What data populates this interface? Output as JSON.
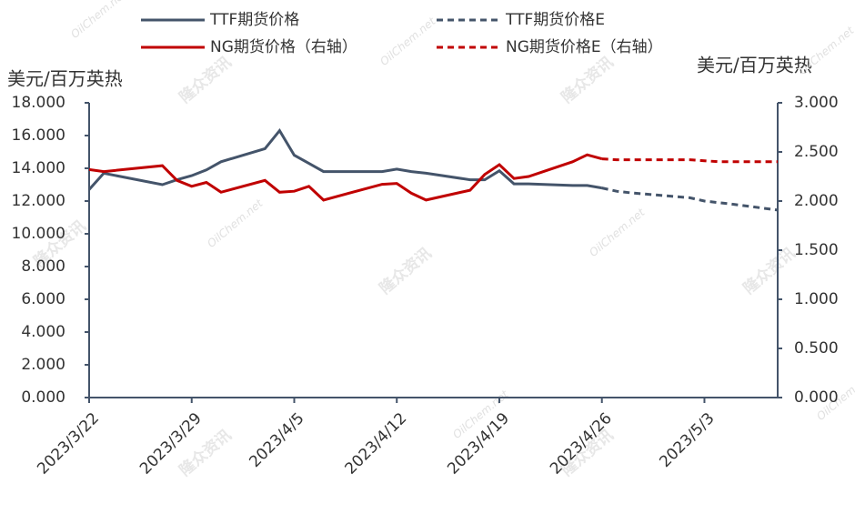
{
  "chart_data": {
    "type": "line",
    "y_label": "美元/百万英热",
    "y2_label": "美元/百万英热",
    "watermark": [
      "隆众资讯",
      "OilChem.net"
    ],
    "x": [
      "2023/3/22",
      "2023/3/23",
      "2023/3/27",
      "2023/3/28",
      "2023/3/29",
      "2023/3/30",
      "2023/3/31",
      "2023/4/3",
      "2023/4/4",
      "2023/4/5",
      "2023/4/6",
      "2023/4/7",
      "2023/4/11",
      "2023/4/12",
      "2023/4/13",
      "2023/4/14",
      "2023/4/17",
      "2023/4/18",
      "2023/4/19",
      "2023/4/20",
      "2023/4/21",
      "2023/4/24",
      "2023/4/25",
      "2023/4/26",
      "2023/4/27",
      "2023/4/28",
      "2023/5/2",
      "2023/5/3",
      "2023/5/4",
      "2023/5/5",
      "2023/5/8"
    ],
    "xlim": [
      "2023/3/22",
      "2023/5/8"
    ],
    "xticks": [
      "2023/3/22",
      "2023/3/29",
      "2023/4/5",
      "2023/4/12",
      "2023/4/19",
      "2023/4/26",
      "2023/5/3"
    ],
    "ylim": [
      0,
      18
    ],
    "yticks": [
      {
        "value": 0,
        "label": "0.000"
      },
      {
        "value": 2,
        "label": "2.000"
      },
      {
        "value": 4,
        "label": "4.000"
      },
      {
        "value": 6,
        "label": "6.000"
      },
      {
        "value": 8,
        "label": "8.000"
      },
      {
        "value": 10,
        "label": "10.000"
      },
      {
        "value": 12,
        "label": "12.000"
      },
      {
        "value": 14,
        "label": "14.000"
      },
      {
        "value": 16,
        "label": "16.000"
      },
      {
        "value": 18,
        "label": "18.000"
      }
    ],
    "y2lim": [
      0,
      3
    ],
    "y2ticks": [
      {
        "value": 0,
        "label": "0.000"
      },
      {
        "value": 0.5,
        "label": "0.500"
      },
      {
        "value": 1,
        "label": "1.000"
      },
      {
        "value": 1.5,
        "label": "1.500"
      },
      {
        "value": 2,
        "label": "2.000"
      },
      {
        "value": 2.5,
        "label": "2.500"
      },
      {
        "value": 3,
        "label": "3.000"
      }
    ],
    "series": [
      {
        "name": "TTF期货价格",
        "color": "#44546a",
        "style": "solid",
        "axis": "y",
        "values": [
          12.7,
          13.7,
          13.0,
          13.3,
          13.55,
          13.9,
          14.4,
          15.2,
          16.3,
          14.8,
          14.3,
          13.8,
          13.8,
          13.95,
          13.8,
          13.7,
          13.3,
          13.3,
          13.85,
          13.05,
          13.05,
          12.95,
          12.95,
          12.8,
          null,
          null,
          null,
          null,
          null,
          null,
          null
        ]
      },
      {
        "name": "TTF期货价格E",
        "color": "#44546a",
        "style": "dashed",
        "axis": "y",
        "values": [
          null,
          null,
          null,
          null,
          null,
          null,
          null,
          null,
          null,
          null,
          null,
          null,
          null,
          null,
          null,
          null,
          null,
          null,
          null,
          null,
          null,
          null,
          null,
          12.8,
          12.6,
          12.5,
          12.2,
          12.0,
          11.9,
          11.8,
          11.45
        ]
      },
      {
        "name": "NG期货价格（右轴）",
        "color": "#c00000",
        "style": "solid",
        "axis": "y2",
        "values": [
          2.32,
          2.3,
          2.36,
          2.21,
          2.15,
          2.19,
          2.09,
          2.21,
          2.09,
          2.1,
          2.15,
          2.01,
          2.17,
          2.18,
          2.08,
          2.01,
          2.11,
          2.27,
          2.37,
          2.23,
          2.25,
          2.4,
          2.47,
          2.43,
          null,
          null,
          null,
          null,
          null,
          null,
          null
        ]
      },
      {
        "name": "NG期货价格E（右轴）",
        "color": "#c00000",
        "style": "dashed",
        "axis": "y2",
        "values": [
          null,
          null,
          null,
          null,
          null,
          null,
          null,
          null,
          null,
          null,
          null,
          null,
          null,
          null,
          null,
          null,
          null,
          null,
          null,
          null,
          null,
          null,
          null,
          2.43,
          2.42,
          2.42,
          2.42,
          2.41,
          2.4,
          2.4,
          2.4
        ]
      }
    ]
  }
}
